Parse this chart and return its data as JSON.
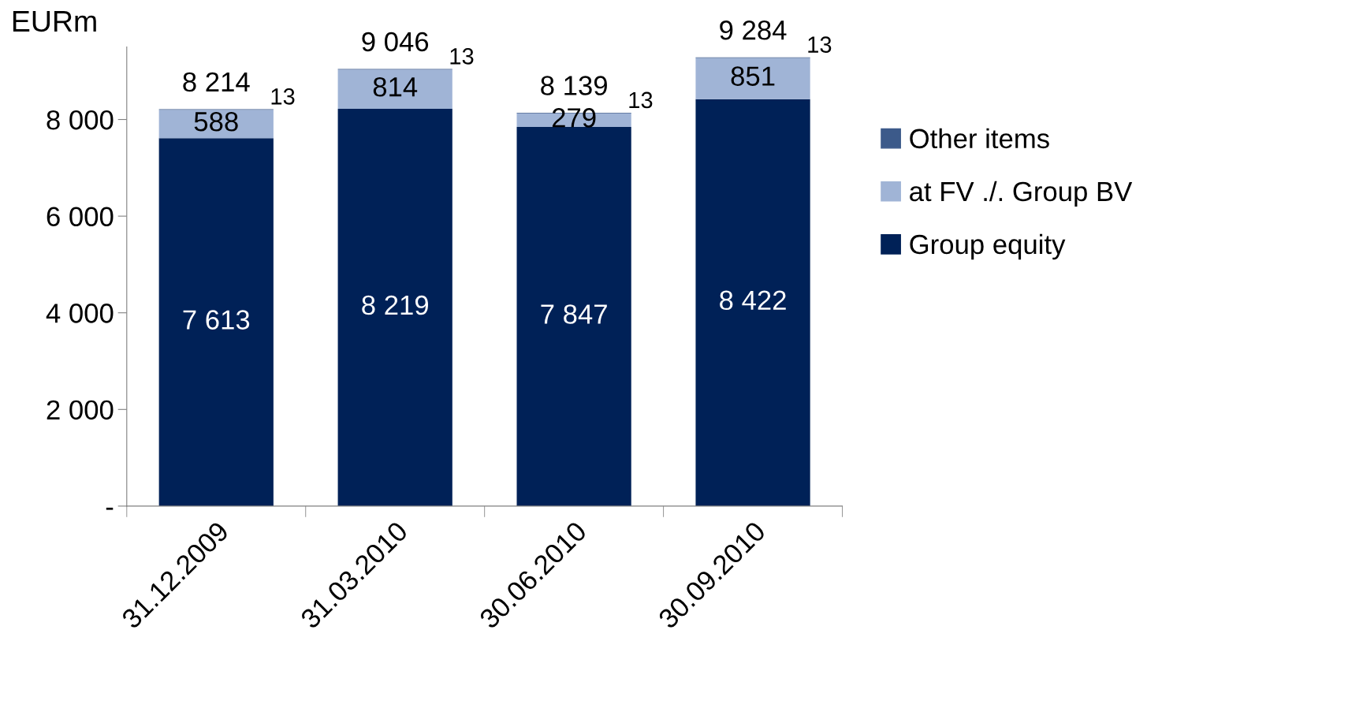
{
  "chart_data": {
    "type": "bar",
    "stacked": true,
    "ylabel": "EURm",
    "categories": [
      "31.12.2009",
      "31.03.2010",
      "30.06.2010",
      "30.09.2010"
    ],
    "series": [
      {
        "name": "Group equity",
        "color": "#002157",
        "values": [
          7613,
          8219,
          7847,
          8422
        ],
        "value_labels": [
          "7 613",
          "8 219",
          "7 847",
          "8 422"
        ]
      },
      {
        "name": "at FV ./. Group BV",
        "color": "#a0b4d6",
        "values": [
          588,
          814,
          279,
          851
        ],
        "value_labels": [
          "588",
          "814",
          "279",
          "851"
        ]
      },
      {
        "name": "Other items",
        "color": "#3c5a8a",
        "values": [
          13,
          13,
          13,
          13
        ],
        "value_labels": [
          "13",
          "13",
          "13",
          "13"
        ]
      }
    ],
    "totals": [
      "8 214",
      "9 046",
      "8 139",
      "9 284"
    ],
    "ylim": [
      0,
      9500
    ],
    "yticks": [
      {
        "value": 0,
        "label": "-"
      },
      {
        "value": 2000,
        "label": "2 000"
      },
      {
        "value": 4000,
        "label": "4 000"
      },
      {
        "value": 6000,
        "label": "6 000"
      },
      {
        "value": 8000,
        "label": "8 000"
      }
    ],
    "grid": false,
    "legend": "right"
  }
}
